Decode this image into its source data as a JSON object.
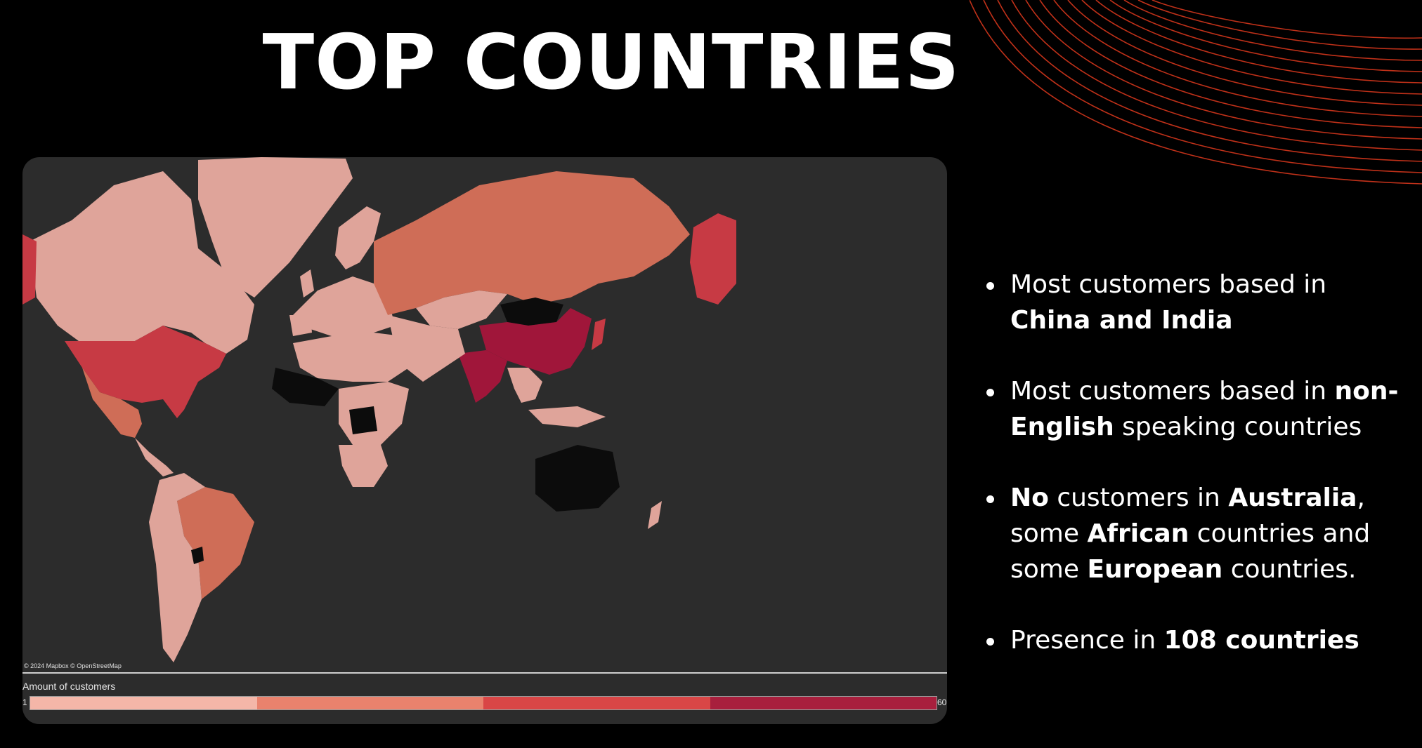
{
  "title": "TOP COUNTRIES",
  "map": {
    "attribution": "© 2024 Mapbox © OpenStreetMap",
    "legend": {
      "title": "Amount of customers",
      "min": "1",
      "max": "60",
      "colors": [
        "#f4b6a8",
        "#e9826d",
        "#d94646",
        "#a81f3d"
      ]
    },
    "colors": {
      "ocean": "#2c2c2c",
      "no_data": "#0c0c0c",
      "low": "#dfa49a",
      "mid": "#cf6d57",
      "high": "#c73a44",
      "top": "#a0163a"
    }
  },
  "bullets": [
    {
      "parts": [
        {
          "text": "Most customers based in ",
          "bold": false
        },
        {
          "text": "China and India",
          "bold": true
        }
      ]
    },
    {
      "parts": [
        {
          "text": "Most customers based in ",
          "bold": false
        },
        {
          "text": "non-English",
          "bold": true
        },
        {
          "text": " speaking countries",
          "bold": false
        }
      ]
    },
    {
      "parts": [
        {
          "text": "No",
          "bold": true
        },
        {
          "text": " customers in ",
          "bold": false
        },
        {
          "text": "Australia",
          "bold": true
        },
        {
          "text": ", some ",
          "bold": false
        },
        {
          "text": "African",
          "bold": true
        },
        {
          "text": " countries and some ",
          "bold": false
        },
        {
          "text": "European",
          "bold": true
        },
        {
          "text": " countries.",
          "bold": false
        }
      ]
    },
    {
      "parts": [
        {
          "text": "Presence in ",
          "bold": false
        },
        {
          "text": "108 countries",
          "bold": true
        }
      ]
    }
  ]
}
